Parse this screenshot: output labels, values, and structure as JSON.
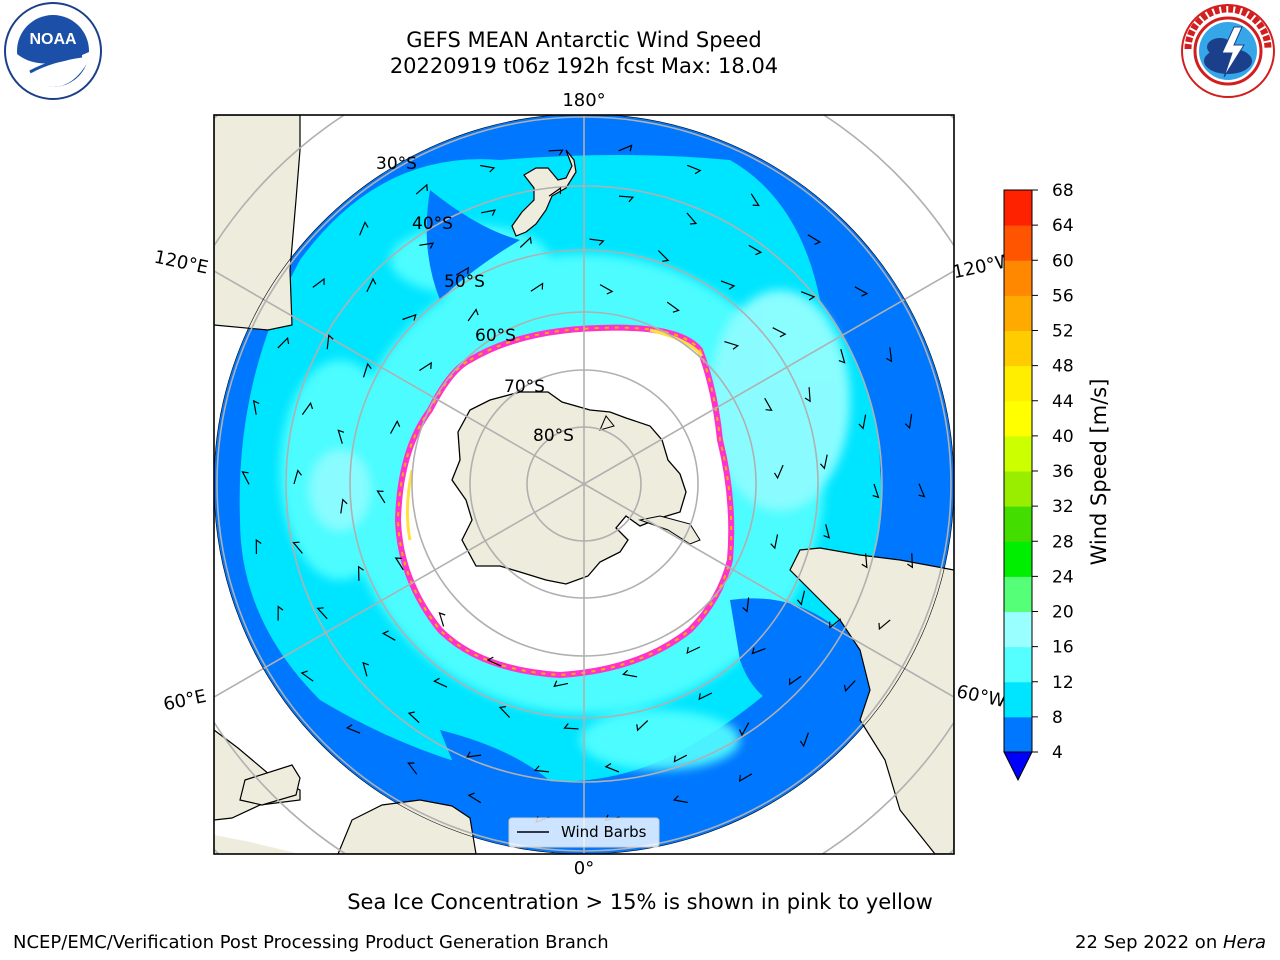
{
  "title": {
    "line1": "GEFS MEAN Antarctic Wind Speed",
    "line2": "20220919 t06z 192h fcst   Max: 18.04"
  },
  "logos": {
    "left": {
      "name": "noaa-logo",
      "text": "NOAA",
      "ring_text": "NATIONAL OCEANIC AND ATMOSPHERIC ADMINISTRATION · U.S. DEPARTMENT OF COMMERCE"
    },
    "right": {
      "name": "nws-logo",
      "ring_text": "NATIONAL WEATHER SERVICE"
    }
  },
  "map": {
    "projection": "south-polar-stereographic",
    "longitude_labels": {
      "top": "180°",
      "upper_left": "120°E",
      "upper_right": "120°W",
      "lower_left": "60°E",
      "lower_right": "60°W",
      "bottom": "0°"
    },
    "latitude_labels": [
      "30°S",
      "40°S",
      "50°S",
      "60°S",
      "70°S",
      "80°S"
    ],
    "legend": {
      "label": "Wind Barbs"
    },
    "colors": {
      "land": "#eeecdc",
      "sea_ice_interior": "#ffffff",
      "sea_ice_edge": [
        "#ff33cc",
        "#ffb000",
        "#ffe040"
      ],
      "grid": "#b0b0b0"
    }
  },
  "colorbar": {
    "label": "Wind Speed [m/s]",
    "ticks": [
      "4",
      "8",
      "12",
      "16",
      "20",
      "24",
      "28",
      "32",
      "36",
      "40",
      "44",
      "48",
      "52",
      "56",
      "60",
      "64",
      "68"
    ],
    "colors": [
      "#0077ff",
      "#00e5ff",
      "#55ffff",
      "#99ffff",
      "#55ff77",
      "#00ee00",
      "#44dd00",
      "#99ee00",
      "#ccff00",
      "#ffff00",
      "#ffee00",
      "#ffcc00",
      "#ffaa00",
      "#ff8800",
      "#ff5500",
      "#ff2200"
    ],
    "under_color": "#0000ff"
  },
  "caption": "Sea Ice Concentration > 15% is shown in pink to yellow",
  "footer": {
    "left": "NCEP/EMC/Verification Post Processing Product Generation Branch",
    "right_date": "22 Sep 2022 on ",
    "right_host": "Hera"
  }
}
